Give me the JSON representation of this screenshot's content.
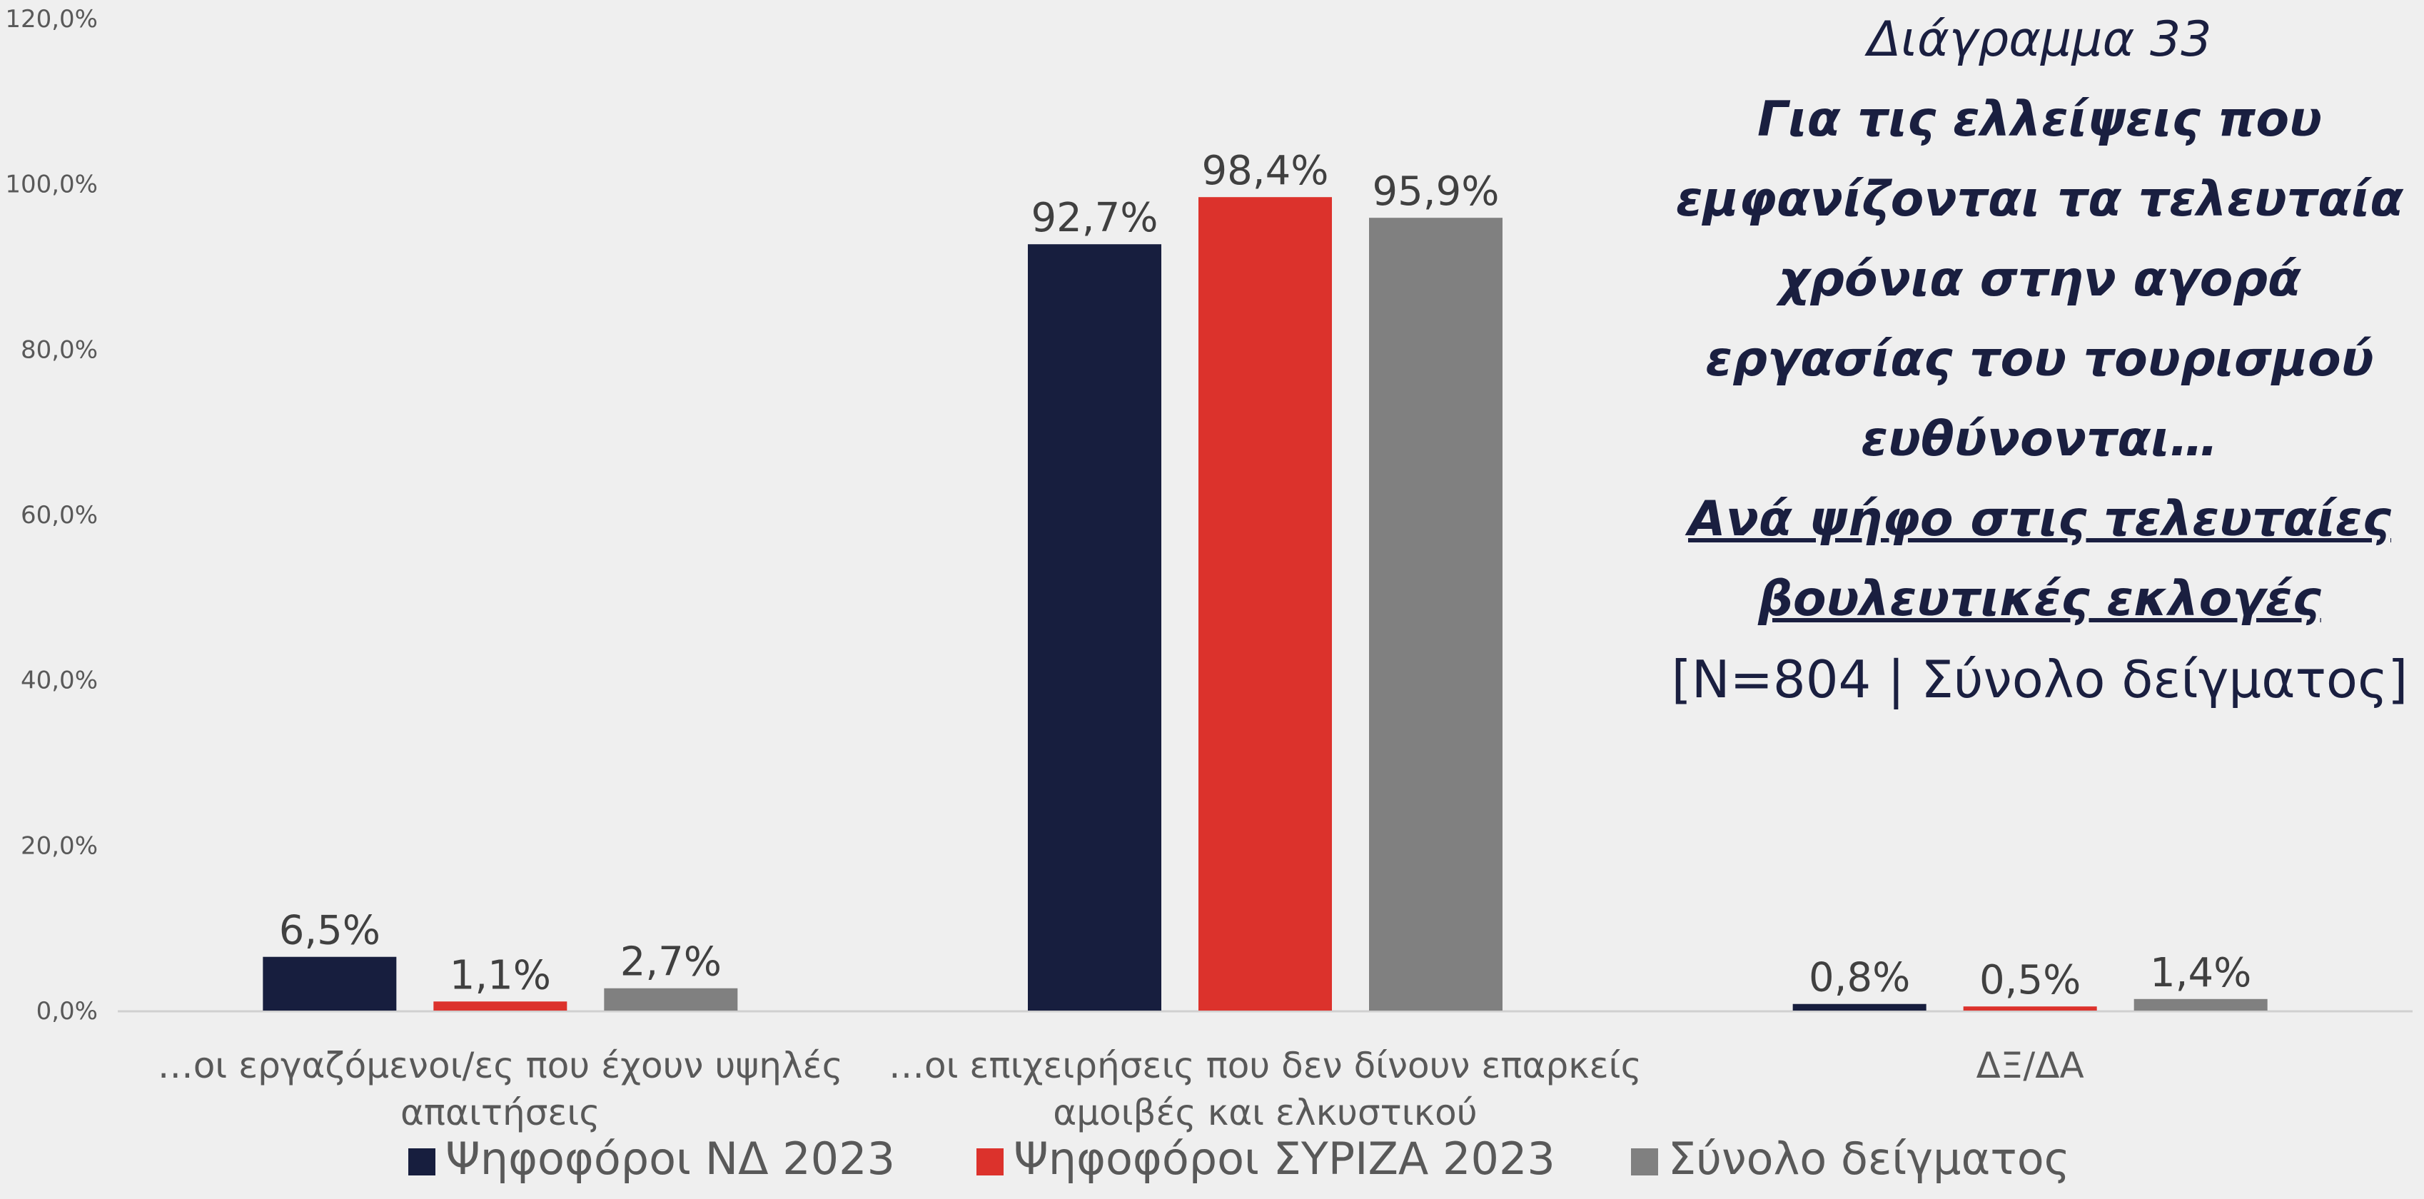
{
  "title": {
    "caption": "Διάγραμμα 33",
    "question": "Για τις ελλείψεις που εμφανίζονται τα τελευταία χρόνια στην αγορά εργασίας του τουρισμού ευθύνονται…",
    "breakdown": "Ανά ψήφο στις τελευταίες βουλευτικές εκλογές",
    "sample": "[N=804 | Σύνολο δείγματος]"
  },
  "colors": {
    "nd": "#171e3e",
    "syriza": "#dc322c",
    "total": "#808080",
    "axis_text": "#595959",
    "label_text": "#404040",
    "gridline": "#d0d0d0"
  },
  "chart_data": {
    "type": "bar",
    "categories": [
      [
        "…οι εργαζόμενοι/ες που έχουν υψηλές",
        "απαιτήσεις"
      ],
      [
        "…οι επιχειρήσεις που δεν δίνουν επαρκείς",
        "αμοιβές και ελκυστικού"
      ],
      [
        "ΔΞ/ΔΑ"
      ]
    ],
    "series": [
      {
        "name": "Ψηφοφόροι ΝΔ 2023",
        "values": [
          6.5,
          92.7,
          0.8
        ],
        "labels": [
          "6,5%",
          "92,7%",
          "0,8%"
        ]
      },
      {
        "name": "Ψηφοφόροι ΣΥΡΙΖΑ 2023",
        "values": [
          1.1,
          98.4,
          0.5
        ],
        "labels": [
          "1,1%",
          "98,4%",
          "0,5%"
        ]
      },
      {
        "name": "Σύνολο δείγματος",
        "values": [
          2.7,
          95.9,
          1.4
        ],
        "labels": [
          "2,7%",
          "95,9%",
          "1,4%"
        ]
      }
    ],
    "ylim": [
      0,
      120
    ],
    "yticks": [
      "0,0%",
      "20,0%",
      "40,0%",
      "60,0%",
      "80,0%",
      "100,0%",
      "120,0%"
    ],
    "xlabel": "",
    "ylabel": "",
    "grid": false,
    "legend_position": "bottom"
  }
}
